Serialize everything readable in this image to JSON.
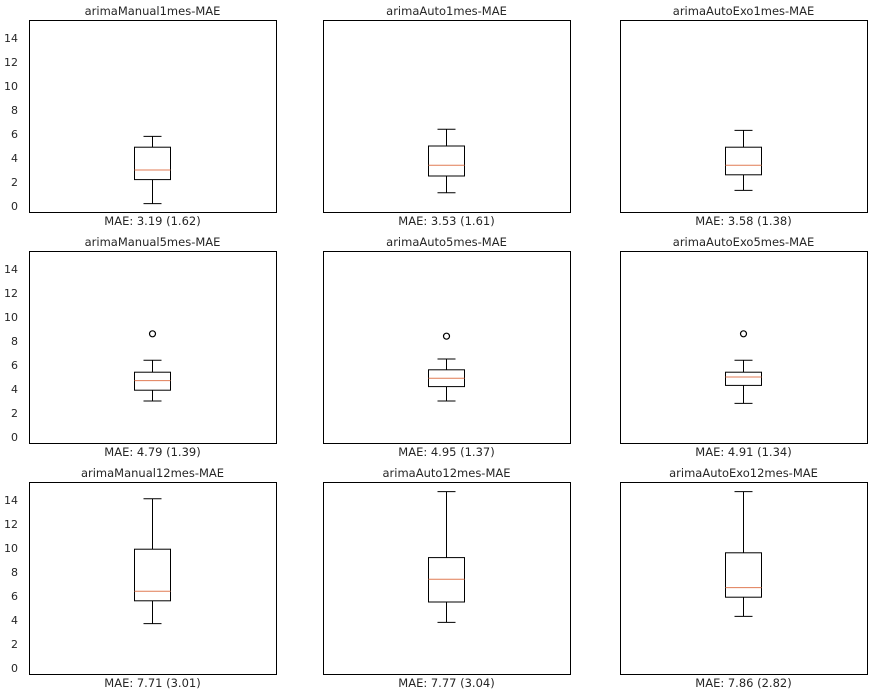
{
  "chart_data": [
    {
      "type": "box",
      "title": "arimaManual1mes-MAE",
      "xlabel": "MAE: 3.19 (1.62)",
      "ylim": [
        -0.5,
        15.5
      ],
      "yticks": [
        "0",
        "2",
        "4",
        "6",
        "8",
        "10",
        "12",
        "14"
      ],
      "box": {
        "whisker_low": 0.2,
        "q1": 2.2,
        "median": 3.0,
        "q3": 4.9,
        "whisker_high": 5.8,
        "outliers": []
      }
    },
    {
      "type": "box",
      "title": "arimaAuto1mes-MAE",
      "xlabel": "MAE: 3.53 (1.61)",
      "ylim": [
        -0.5,
        15.5
      ],
      "yticks": [],
      "box": {
        "whisker_low": 1.1,
        "q1": 2.5,
        "median": 3.4,
        "q3": 5.0,
        "whisker_high": 6.4,
        "outliers": []
      }
    },
    {
      "type": "box",
      "title": "arimaAutoExo1mes-MAE",
      "xlabel": "MAE: 3.58 (1.38)",
      "ylim": [
        -0.5,
        15.5
      ],
      "yticks": [],
      "box": {
        "whisker_low": 1.3,
        "q1": 2.6,
        "median": 3.4,
        "q3": 4.9,
        "whisker_high": 6.3,
        "outliers": []
      }
    },
    {
      "type": "box",
      "title": "arimaManual5mes-MAE",
      "xlabel": "MAE: 4.79 (1.39)",
      "ylim": [
        -0.5,
        15.5
      ],
      "yticks": [
        "0",
        "2",
        "4",
        "6",
        "8",
        "10",
        "12",
        "14"
      ],
      "box": {
        "whisker_low": 3.0,
        "q1": 3.9,
        "median": 4.7,
        "q3": 5.4,
        "whisker_high": 6.4,
        "outliers": [
          8.6
        ]
      }
    },
    {
      "type": "box",
      "title": "arimaAuto5mes-MAE",
      "xlabel": "MAE: 4.95 (1.37)",
      "ylim": [
        -0.5,
        15.5
      ],
      "yticks": [],
      "box": {
        "whisker_low": 3.0,
        "q1": 4.2,
        "median": 4.9,
        "q3": 5.6,
        "whisker_high": 6.5,
        "outliers": [
          8.4
        ]
      }
    },
    {
      "type": "box",
      "title": "arimaAutoExo5mes-MAE",
      "xlabel": "MAE: 4.91 (1.34)",
      "ylim": [
        -0.5,
        15.5
      ],
      "yticks": [],
      "box": {
        "whisker_low": 2.8,
        "q1": 4.3,
        "median": 5.0,
        "q3": 5.4,
        "whisker_high": 6.4,
        "outliers": [
          8.6
        ]
      }
    },
    {
      "type": "box",
      "title": "arimaManual12mes-MAE",
      "xlabel": "MAE: 7.71 (3.01)",
      "ylim": [
        -0.5,
        15.5
      ],
      "yticks": [
        "0",
        "2",
        "4",
        "6",
        "8",
        "10",
        "12",
        "14"
      ],
      "box": {
        "whisker_low": 3.7,
        "q1": 5.6,
        "median": 6.4,
        "q3": 9.9,
        "whisker_high": 14.1,
        "outliers": []
      }
    },
    {
      "type": "box",
      "title": "arimaAuto12mes-MAE",
      "xlabel": "MAE: 7.77 (3.04)",
      "ylim": [
        -0.5,
        15.5
      ],
      "yticks": [],
      "box": {
        "whisker_low": 3.8,
        "q1": 5.5,
        "median": 7.4,
        "q3": 9.2,
        "whisker_high": 14.7,
        "outliers": []
      }
    },
    {
      "type": "box",
      "title": "arimaAutoExo12mes-MAE",
      "xlabel": "MAE: 7.86 (2.82)",
      "ylim": [
        -0.5,
        15.5
      ],
      "yticks": [],
      "box": {
        "whisker_low": 4.3,
        "q1": 5.9,
        "median": 6.7,
        "q3": 9.6,
        "whisker_high": 14.7,
        "outliers": []
      }
    }
  ],
  "colors": {
    "box": "#000000",
    "median": "#e07b54",
    "frame": "#000000",
    "text": "#262626",
    "background": "#ffffff"
  }
}
